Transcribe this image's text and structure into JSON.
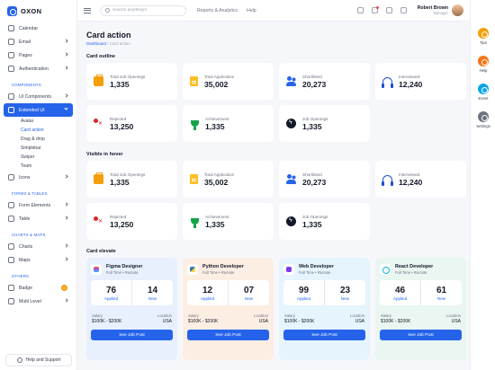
{
  "brand": {
    "name": "OXON"
  },
  "sidebar": {
    "top_items": [
      {
        "label": "Calendar"
      },
      {
        "label": "Email"
      },
      {
        "label": "Pages"
      },
      {
        "label": "Authentication"
      }
    ],
    "sections": {
      "components": "COMPONENTS",
      "forms": "FORMS & TABLES",
      "charts": "CHARTS & MAPS",
      "others": "OTHERS"
    },
    "components_items": [
      {
        "label": "UI Components"
      },
      {
        "label": "Extended UI"
      }
    ],
    "extended_sub": [
      {
        "label": "Avatar"
      },
      {
        "label": "Card action"
      },
      {
        "label": "Drag & drop"
      },
      {
        "label": "Simplebar"
      },
      {
        "label": "Swiper"
      },
      {
        "label": "Team"
      }
    ],
    "after_sub": [
      {
        "label": "Icons"
      }
    ],
    "forms_items": [
      {
        "label": "Form Elements"
      },
      {
        "label": "Table"
      }
    ],
    "charts_items": [
      {
        "label": "Charts"
      },
      {
        "label": "Maps"
      }
    ],
    "others_items": [
      {
        "label": "Badge",
        "badge": "6"
      },
      {
        "label": "Multi Level"
      }
    ],
    "help_label": "Help and Support"
  },
  "header": {
    "search_placeholder": "Search anything's",
    "links": [
      "Reports & Analytics",
      "Help"
    ],
    "user_name": "Robert Brown",
    "user_role": "Manager"
  },
  "rail": [
    {
      "label": "Tips",
      "color": "#f59e0b"
    },
    {
      "label": "Help",
      "color": "#f97316"
    },
    {
      "label": "Event",
      "color": "#0ea5e9"
    },
    {
      "label": "Settings",
      "color": "#6b7280"
    }
  ],
  "page": {
    "title": "Card action",
    "breadcrumb": [
      "Dashboard",
      "Card action"
    ]
  },
  "card_outline": {
    "title": "Card outline",
    "cards": [
      {
        "label": "Total Job Openings",
        "value": "1,335"
      },
      {
        "label": "Total Application",
        "value": "35,002"
      },
      {
        "label": "Shortlisted",
        "value": "20,273"
      },
      {
        "label": "Interviewed",
        "value": "12,240"
      },
      {
        "label": "Rejected",
        "value": "13,250"
      },
      {
        "label": "Achievement",
        "value": "1,335"
      },
      {
        "label": "Job Openings",
        "value": "1,335"
      }
    ]
  },
  "visible_hover": {
    "title": "Visible in hover",
    "cards": [
      {
        "label": "Total Job Openings",
        "value": "1,335"
      },
      {
        "label": "Total Application",
        "value": "35,002"
      },
      {
        "label": "Shortlisted",
        "value": "20,273"
      },
      {
        "label": "Interviewed",
        "value": "12,240"
      },
      {
        "label": "Rejected",
        "value": "13,250"
      },
      {
        "label": "Achievement",
        "value": "1,335"
      },
      {
        "label": "Job Openings",
        "value": "1,335"
      }
    ]
  },
  "card_elevate": {
    "title": "Card elevate",
    "jobs": [
      {
        "title": "Figma Designer",
        "meta": "Full Time • Remote",
        "applied": "76",
        "applied_label": "Applied",
        "new": "14",
        "new_label": "New",
        "salary_label": "Salary",
        "salary": "$100K - $200K",
        "location_label": "Location",
        "location": "USA",
        "button": "See Job Post"
      },
      {
        "title": "Python Developer",
        "meta": "Full Time • Remote",
        "applied": "12",
        "applied_label": "Applied",
        "new": "07",
        "new_label": "New",
        "salary_label": "Salary",
        "salary": "$100K - $200K",
        "location_label": "Location",
        "location": "USA",
        "button": "See Job Post"
      },
      {
        "title": "Web Developer",
        "meta": "Full Time • Remote",
        "applied": "99",
        "applied_label": "Applied",
        "new": "23",
        "new_label": "New",
        "salary_label": "Salary",
        "salary": "$100K - $200K",
        "location_label": "Location",
        "location": "USA",
        "button": "See Job Post"
      },
      {
        "title": "React Developer",
        "meta": "Full Time • Remote",
        "applied": "46",
        "applied_label": "Applied",
        "new": "61",
        "new_label": "New",
        "salary_label": "Salary",
        "salary": "$100K - $200K",
        "location_label": "Location",
        "location": "USA",
        "button": "See Job Post"
      }
    ]
  }
}
